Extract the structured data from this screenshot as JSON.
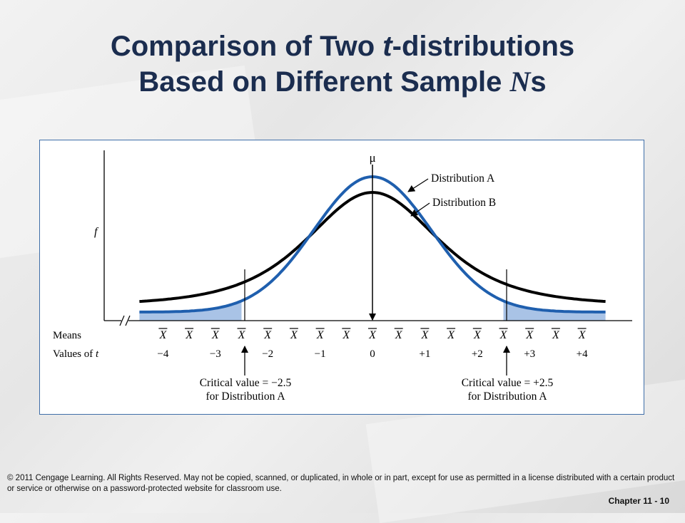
{
  "title": {
    "line1_a": "Comparison of Two ",
    "line1_t": "t",
    "line1_b": "-distributions",
    "line2_a": "Based on Different Sample ",
    "line2_N": "N",
    "line2_b": "s"
  },
  "diagram": {
    "mu": "μ",
    "f": "f",
    "distribution_a": "Distribution A",
    "distribution_b": "Distribution B",
    "means_label": "Means",
    "values_label_prefix": "Values of ",
    "values_label_t": "t",
    "xbar": "X",
    "t_values": [
      "−4",
      "−3",
      "−2",
      "−1",
      "0",
      "+1",
      "+2",
      "+3",
      "+4"
    ],
    "critical_left_line1": "Critical value = −2.5",
    "critical_left_line2": "for Distribution A",
    "critical_right_line1": "Critical value = +2.5",
    "critical_right_line2": "for Distribution A",
    "colors": {
      "distribution_a": "#1f5fae",
      "distribution_b": "#000000",
      "shade": "#a9c3e6"
    }
  },
  "footer": {
    "copyright": "© 2011 Cengage Learning. All Rights Reserved. May not be copied, scanned, or duplicated, in whole or in part, except for use as permitted in a license distributed with a certain product or service or otherwise on a password-protected website for classroom use.",
    "chapter": "Chapter 11 - 10"
  }
}
